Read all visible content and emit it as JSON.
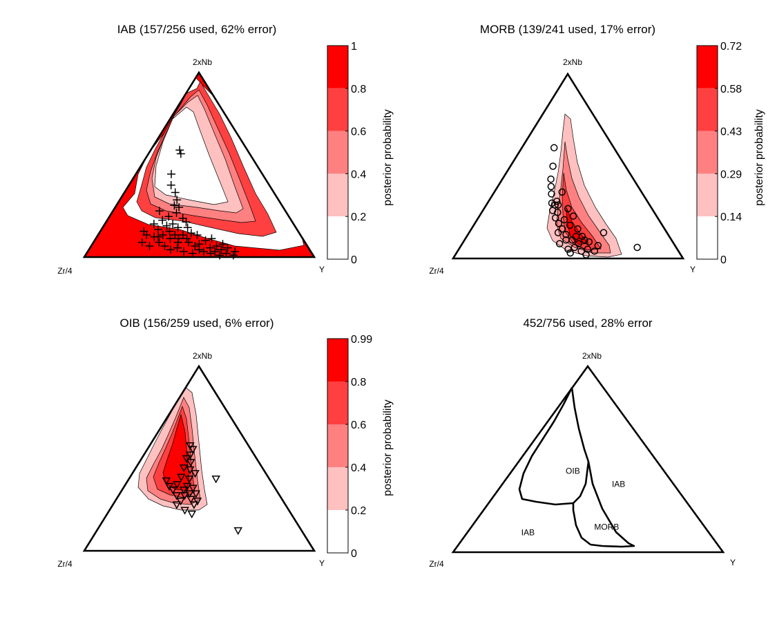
{
  "chart_data": [
    {
      "type": "ternary-contour",
      "id": "iab",
      "title": "IAB (157/256 used, 62% error)",
      "vertices": {
        "top": "2xNb",
        "left": "Zr/4",
        "right": "Y"
      },
      "colorbar": {
        "label": "posterior probability",
        "ticks": [
          "1",
          "0.8",
          "0.6",
          "0.4",
          "0.2",
          "0"
        ],
        "levels": [
          "#ff0000",
          "#ff4040",
          "#ff8080",
          "#ffc0c0",
          "#ffffff"
        ]
      },
      "marker": "plus",
      "points": [
        [
          0.32,
          0.12
        ],
        [
          0.3,
          0.11
        ],
        [
          0.35,
          0.14
        ],
        [
          0.28,
          0.11
        ],
        [
          0.38,
          0.12
        ],
        [
          0.36,
          0.18
        ],
        [
          0.3,
          0.2
        ],
        [
          0.33,
          0.22
        ],
        [
          0.27,
          0.25
        ],
        [
          0.4,
          0.1
        ],
        [
          0.42,
          0.12
        ],
        [
          0.45,
          0.08
        ],
        [
          0.48,
          0.06
        ],
        [
          0.5,
          0.04
        ],
        [
          0.52,
          0.03
        ],
        [
          0.55,
          0.02
        ],
        [
          0.57,
          0.03
        ],
        [
          0.6,
          0.04
        ],
        [
          0.62,
          0.02
        ],
        [
          0.58,
          0.06
        ],
        [
          0.53,
          0.09
        ],
        [
          0.46,
          0.13
        ],
        [
          0.44,
          0.16
        ],
        [
          0.41,
          0.21
        ],
        [
          0.38,
          0.27
        ],
        [
          0.36,
          0.31
        ],
        [
          0.34,
          0.35
        ],
        [
          0.3,
          0.39
        ],
        [
          0.28,
          0.45
        ],
        [
          0.3,
          0.58
        ],
        [
          0.32,
          0.56
        ],
        [
          0.37,
          0.24
        ],
        [
          0.35,
          0.28
        ],
        [
          0.26,
          0.18
        ],
        [
          0.24,
          0.12
        ],
        [
          0.22,
          0.14
        ],
        [
          0.23,
          0.08
        ],
        [
          0.34,
          0.06
        ],
        [
          0.37,
          0.04
        ],
        [
          0.4,
          0.05
        ],
        [
          0.43,
          0.03
        ],
        [
          0.47,
          0.02
        ],
        [
          0.5,
          0.07
        ],
        [
          0.55,
          0.05
        ],
        [
          0.59,
          0.01
        ],
        [
          0.63,
          0.05
        ],
        [
          0.66,
          0.03
        ],
        [
          0.65,
          0.01
        ],
        [
          0.61,
          0.07
        ],
        [
          0.56,
          0.1
        ],
        [
          0.49,
          0.12
        ],
        [
          0.44,
          0.1
        ],
        [
          0.39,
          0.16
        ],
        [
          0.43,
          0.19
        ],
        [
          0.33,
          0.17
        ],
        [
          0.29,
          0.15
        ],
        [
          0.31,
          0.08
        ],
        [
          0.27,
          0.06
        ],
        [
          0.36,
          0.1
        ],
        [
          0.4,
          0.08
        ]
      ]
    },
    {
      "type": "ternary-contour",
      "id": "morb",
      "title": "MORB (139/241 used, 17% error)",
      "vertices": {
        "top": "2xNb",
        "left": "Zr/4",
        "right": "Y"
      },
      "colorbar": {
        "label": "posterior probability",
        "ticks": [
          "0.72",
          "0.58",
          "0.43",
          "0.29",
          "0.14",
          "0"
        ],
        "levels": [
          "#ff0000",
          "#ff4040",
          "#ff8080",
          "#ffc0c0",
          "#ffffff"
        ]
      },
      "marker": "circle",
      "points": [
        [
          0.5,
          0.05
        ],
        [
          0.53,
          0.06
        ],
        [
          0.56,
          0.04
        ],
        [
          0.59,
          0.05
        ],
        [
          0.62,
          0.04
        ],
        [
          0.55,
          0.08
        ],
        [
          0.52,
          0.1
        ],
        [
          0.49,
          0.13
        ],
        [
          0.47,
          0.16
        ],
        [
          0.45,
          0.19
        ],
        [
          0.43,
          0.22
        ],
        [
          0.41,
          0.26
        ],
        [
          0.43,
          0.31
        ],
        [
          0.39,
          0.35
        ],
        [
          0.38,
          0.39
        ],
        [
          0.37,
          0.43
        ],
        [
          0.35,
          0.6
        ],
        [
          0.37,
          0.5
        ],
        [
          0.46,
          0.36
        ],
        [
          0.42,
          0.29
        ],
        [
          0.44,
          0.25
        ],
        [
          0.48,
          0.21
        ],
        [
          0.51,
          0.18
        ],
        [
          0.55,
          0.16
        ],
        [
          0.57,
          0.12
        ],
        [
          0.6,
          0.09
        ],
        [
          0.64,
          0.07
        ],
        [
          0.68,
          0.14
        ],
        [
          0.82,
          0.06
        ],
        [
          0.5,
          0.27
        ],
        [
          0.53,
          0.23
        ],
        [
          0.46,
          0.08
        ],
        [
          0.51,
          0.03
        ],
        [
          0.58,
          0.02
        ],
        [
          0.44,
          0.29
        ],
        [
          0.4,
          0.3
        ],
        [
          0.45,
          0.14
        ],
        [
          0.58,
          0.1
        ],
        [
          0.54,
          0.12
        ],
        [
          0.49,
          0.1
        ]
      ]
    },
    {
      "type": "ternary-contour",
      "id": "oib",
      "title": "OIB (156/259 used, 6% error)",
      "vertices": {
        "top": "2xNb",
        "left": "Zr/4",
        "right": "Y"
      },
      "colorbar": {
        "label": "posterior probability",
        "ticks": [
          "0.99",
          "0.8",
          "0.6",
          "0.4",
          "0.2",
          "0"
        ],
        "levels": [
          "#ff0000",
          "#ff4040",
          "#ff8080",
          "#ffc0c0",
          "#ffffff"
        ]
      },
      "marker": "triangle-down",
      "points": [
        [
          0.37,
          0.25
        ],
        [
          0.39,
          0.27
        ],
        [
          0.41,
          0.3
        ],
        [
          0.42,
          0.35
        ],
        [
          0.43,
          0.39
        ],
        [
          0.43,
          0.44
        ],
        [
          0.43,
          0.48
        ],
        [
          0.42,
          0.52
        ],
        [
          0.44,
          0.55
        ],
        [
          0.41,
          0.57
        ],
        [
          0.39,
          0.5
        ],
        [
          0.38,
          0.45
        ],
        [
          0.37,
          0.4
        ],
        [
          0.35,
          0.36
        ],
        [
          0.33,
          0.33
        ],
        [
          0.3,
          0.35
        ],
        [
          0.27,
          0.38
        ],
        [
          0.45,
          0.28
        ],
        [
          0.47,
          0.25
        ],
        [
          0.49,
          0.27
        ],
        [
          0.46,
          0.2
        ],
        [
          0.42,
          0.22
        ],
        [
          0.44,
          0.31
        ],
        [
          0.46,
          0.34
        ],
        [
          0.47,
          0.42
        ],
        [
          0.62,
          0.39
        ],
        [
          0.69,
          0.11
        ],
        [
          0.4,
          0.33
        ],
        [
          0.36,
          0.3
        ],
        [
          0.48,
          0.31
        ]
      ]
    },
    {
      "type": "ternary-boundaries",
      "id": "combined",
      "title": "452/756 used, 28% error",
      "vertices": {
        "top": "2xNb",
        "left": "Zr/4",
        "right": "Y"
      },
      "regions": [
        {
          "label": "OIB",
          "a": 0.4,
          "b": 0.44
        },
        {
          "label": "IAB",
          "a": 0.68,
          "b": 0.37
        },
        {
          "label": "MORB",
          "a": 0.58,
          "b": 0.14
        },
        {
          "label": "IAB",
          "a": 0.25,
          "b": 0.11
        }
      ]
    }
  ]
}
